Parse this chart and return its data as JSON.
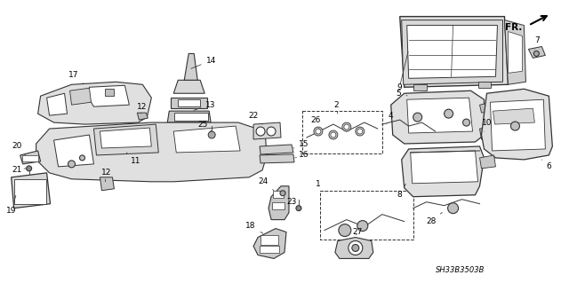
{
  "background_color": "#ffffff",
  "line_color": "#333333",
  "text_color": "#000000",
  "reference_code": "SH33B3503B",
  "fr_label": "FR.",
  "fig_width": 6.4,
  "fig_height": 3.19,
  "dpi": 100,
  "label_fs": 6.5,
  "ref_fs": 6.0
}
